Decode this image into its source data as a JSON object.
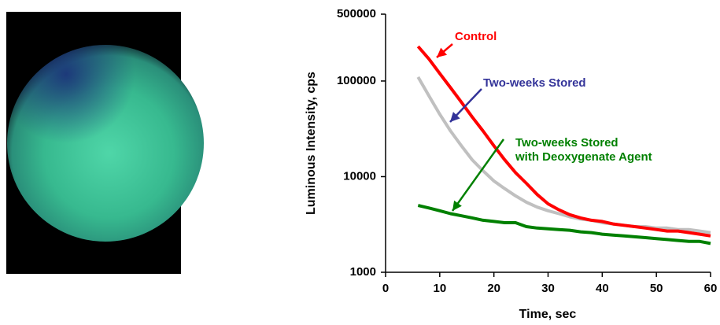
{
  "chart_data": {
    "type": "line",
    "yscale": "log",
    "xlabel": "Time, sec",
    "ylabel": "Luminous Intensity, cps",
    "xlim": [
      0,
      60
    ],
    "xticks": [
      0,
      10,
      20,
      30,
      40,
      50,
      60
    ],
    "ylim": [
      1000,
      500000
    ],
    "yticks": [
      1000,
      10000,
      100000,
      500000
    ],
    "x": [
      6,
      8,
      10,
      12,
      14,
      16,
      18,
      20,
      22,
      24,
      26,
      28,
      30,
      32,
      34,
      36,
      38,
      40,
      42,
      44,
      46,
      48,
      50,
      52,
      54,
      56,
      58,
      60
    ],
    "series": [
      {
        "color": "#c0c0c0",
        "values": [
          110000,
          70000,
          45000,
          30000,
          21000,
          15000,
          11500,
          9000,
          7500,
          6300,
          5400,
          4800,
          4400,
          4100,
          3800,
          3600,
          3500,
          3300,
          3200,
          3100,
          3000,
          3000,
          2900,
          2900,
          2800,
          2800,
          2700,
          2600
        ]
      },
      {
        "color": "#ff0000",
        "values": [
          230000,
          170000,
          120000,
          85000,
          60000,
          42000,
          30000,
          21000,
          15000,
          11000,
          8500,
          6500,
          5200,
          4500,
          4000,
          3700,
          3500,
          3400,
          3200,
          3100,
          3000,
          2900,
          2800,
          2700,
          2700,
          2600,
          2500,
          2400
        ]
      },
      {
        "color": "#008000",
        "values": [
          5000,
          4700,
          4400,
          4100,
          3900,
          3700,
          3500,
          3400,
          3300,
          3300,
          3000,
          2900,
          2850,
          2800,
          2750,
          2650,
          2600,
          2500,
          2450,
          2400,
          2350,
          2300,
          2250,
          2200,
          2150,
          2100,
          2100,
          2000
        ]
      }
    ],
    "annotations": [
      {
        "lines": [
          "Control"
        ],
        "color": "#ff0000"
      },
      {
        "lines": [
          "Two-weeks Stored"
        ],
        "color": "#333399"
      },
      {
        "lines": [
          "Two-weeks Stored",
          "with Deoxygenate Agent"
        ],
        "color": "#008000"
      }
    ]
  }
}
